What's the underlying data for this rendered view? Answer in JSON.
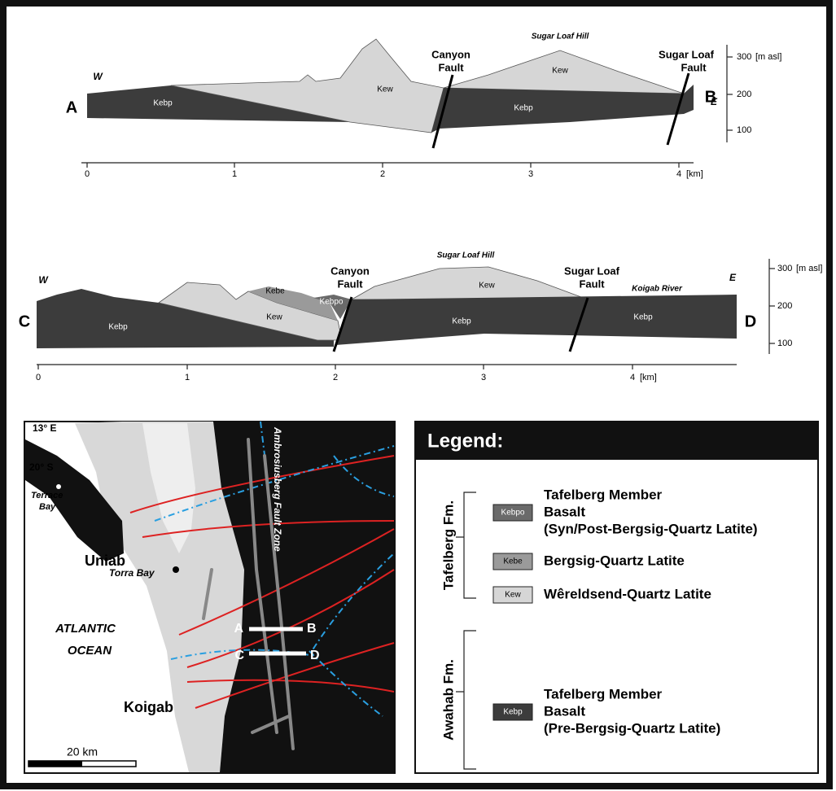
{
  "section_ab": {
    "west": "W",
    "east": "E",
    "start": "A",
    "end": "B",
    "units": [
      "Kebp",
      "Kew",
      "Kew",
      "Kebp"
    ],
    "canyon_fault": [
      "Canyon",
      "Fault"
    ],
    "sugar_loaf_fault": [
      "Sugar Loaf",
      "Fault"
    ],
    "hill": "Sugar Loaf Hill",
    "x_ticks": [
      "0",
      "1",
      "2",
      "3",
      "4"
    ],
    "x_unit": "[km]",
    "elev_ticks": [
      "300",
      "200",
      "100"
    ],
    "elev_unit": "[m asl]"
  },
  "section_cd": {
    "west": "W",
    "east": "E",
    "start": "C",
    "end": "D",
    "units": [
      "Kebp",
      "Kew",
      "Kebe",
      "Kebpo",
      "Kew",
      "Kebp",
      "Kebp"
    ],
    "canyon_fault": [
      "Canyon",
      "Fault"
    ],
    "sugar_loaf_fault": [
      "Sugar Loaf",
      "Fault"
    ],
    "hill": "Sugar Loaf Hill",
    "river": "Koigab River",
    "x_ticks": [
      "0",
      "1",
      "2",
      "3",
      "4"
    ],
    "x_unit": "[km]",
    "elev_ticks": [
      "300",
      "200",
      "100"
    ],
    "elev_unit": "[m asl]"
  },
  "map": {
    "longitude": "13° E",
    "latitude": "20° S",
    "terrace_bay": [
      "Terrace",
      "Bay"
    ],
    "uniab": "Uniab",
    "torra_bay": "Torra Bay",
    "ocean": [
      "ATLANTIC",
      "OCEAN"
    ],
    "koigab": "Koigab",
    "fault_zone": "Ambrosiusberg Fault Zone",
    "profile_ab": [
      "A",
      "B"
    ],
    "profile_cd": [
      "C",
      "D"
    ],
    "scale": "20 km"
  },
  "legend": {
    "title": "Legend:",
    "groups": [
      {
        "name": "Tafelberg Fm.",
        "items": [
          {
            "code": "Kebpo",
            "lines": [
              "Tafelberg Member",
              "Basalt",
              "(Syn/Post-Bergsig-Quartz Latite)"
            ]
          },
          {
            "code": "Kebe",
            "lines": [
              "Bergsig-Quartz Latite"
            ]
          },
          {
            "code": "Kew",
            "lines": [
              "Wêreldsend-Quartz Latite"
            ]
          }
        ]
      },
      {
        "name": "Awahab Fm.",
        "items": [
          {
            "code": "Kebp",
            "lines": [
              "Tafelberg Member",
              "Basalt",
              "(Pre-Bergsig-Quartz Latite)"
            ]
          }
        ]
      }
    ]
  }
}
